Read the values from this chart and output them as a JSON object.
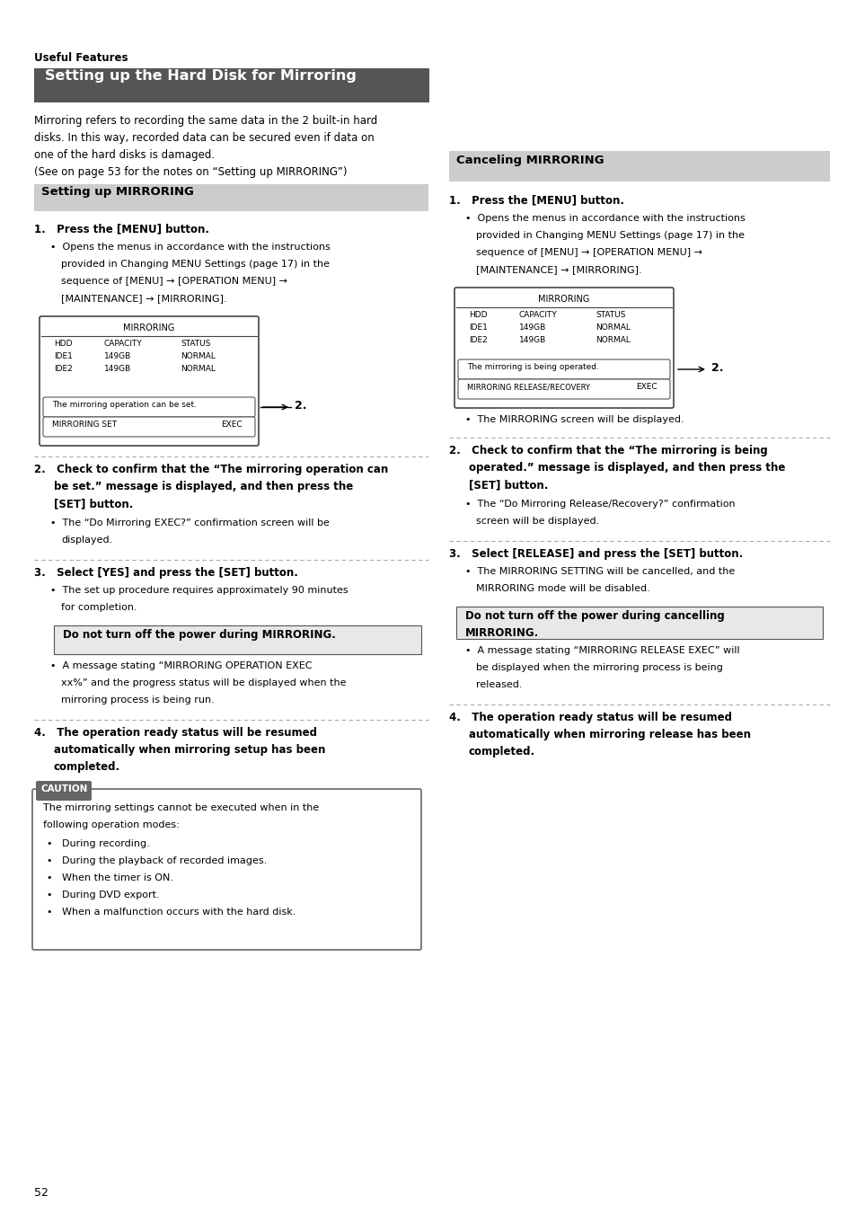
{
  "page_bg": "#ffffff",
  "page_number": "52",
  "useful_features_label": "Useful Features",
  "main_title": "Setting up the Hard Disk for Mirroring",
  "main_title_bg": "#555555",
  "main_title_color": "#ffffff",
  "intro_line1": "Mirroring refers to recording the same data in the 2 built-in hard",
  "intro_line2": "disks. In this way, recorded data can be secured even if data on",
  "intro_line3": "one of the hard disks is damaged.",
  "intro_line4": "(See on page 53 for the notes on “Setting up MIRRORING”)",
  "left_section_title": "Setting up MIRRORING",
  "left_section_bg": "#cccccc",
  "right_section_title": "Canceling MIRRORING",
  "right_section_bg": "#cccccc",
  "screen_title": "MIRRORING",
  "screen_col1": "HDD",
  "screen_col2": "CAPACITY",
  "screen_col3": "STATUS",
  "screen_r1c1": "IDE1",
  "screen_r1c2": "149GB",
  "screen_r1c3": "NORMAL",
  "screen_r2c1": "IDE2",
  "screen_r2c2": "149GB",
  "screen_r2c3": "NORMAL",
  "left_msg": "The mirroring operation can be set.",
  "left_btn": "MIRRORING SET",
  "left_btn_exec": "EXEC",
  "right_msg": "The mirroring is being operated.",
  "right_btn": "MIRRORING RELEASE/RECOVERY",
  "right_btn_exec": "EXEC",
  "caution_title": "CAUTION",
  "caution_bg": "#666666",
  "warn_bg": "#e8e8e8"
}
